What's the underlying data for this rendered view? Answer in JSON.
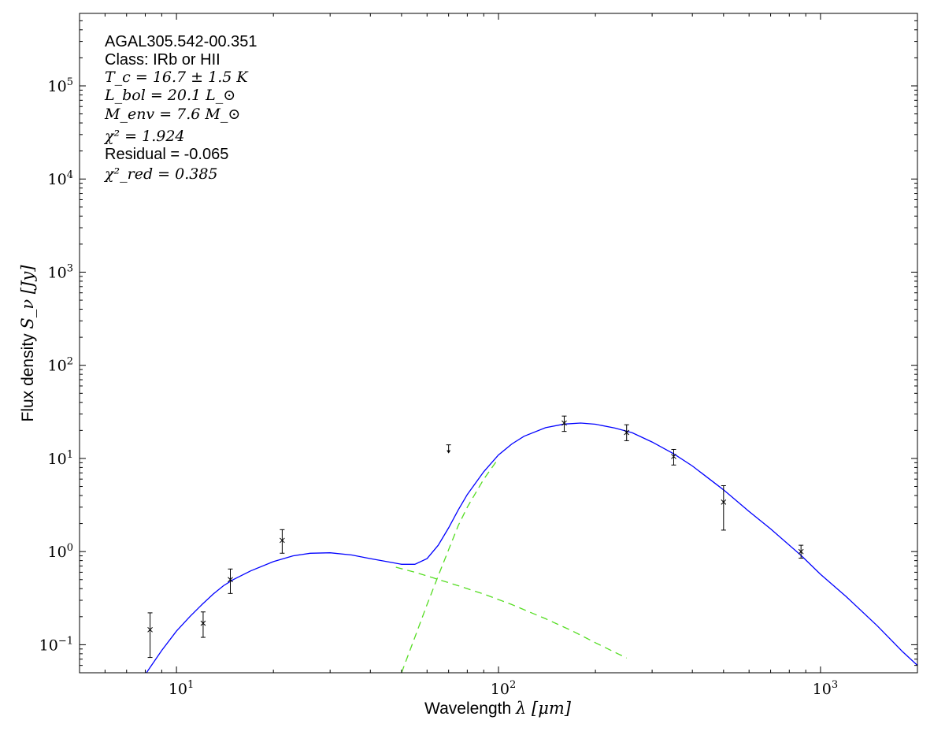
{
  "chart_data": {
    "type": "scatter",
    "xlabel_text": "Wavelength",
    "xlabel_symbol": "λ [μm]",
    "ylabel_text": "Flux density",
    "ylabel_symbol": "S_ν [Jy]",
    "xscale": "log",
    "yscale": "log",
    "xlim": [
      5,
      2000
    ],
    "ylim": [
      0.05,
      600000
    ],
    "x_ticks": [
      10,
      100,
      1000
    ],
    "x_tick_labels": [
      "10^1",
      "10^2",
      "10^3"
    ],
    "y_ticks": [
      0.1,
      1,
      10,
      100,
      1000,
      10000,
      100000
    ],
    "y_tick_labels": [
      "10^-1",
      "10^0",
      "10^1",
      "10^2",
      "10^3",
      "10^4",
      "10^5"
    ],
    "grid": false,
    "annotations": {
      "source": "AGAL305.542-00.351",
      "class": "Class: IRb or HII",
      "tc": "T_c = 16.7 ± 1.5 K",
      "lbol": "L_bol = 20.1 L_⊙",
      "menv": "M_env = 7.6 M_⊙",
      "chi2": "χ² = 1.924",
      "residual": "Residual = -0.065",
      "chi2red": "χ²_red = 0.385"
    },
    "measurements": [
      {
        "x": 8.28,
        "y": 0.145,
        "ylo": 0.073,
        "yhi": 0.22
      },
      {
        "x": 12.1,
        "y": 0.17,
        "ylo": 0.12,
        "yhi": 0.225
      },
      {
        "x": 14.7,
        "y": 0.5,
        "ylo": 0.355,
        "yhi": 0.65
      },
      {
        "x": 21.3,
        "y": 1.32,
        "ylo": 0.96,
        "yhi": 1.72
      },
      {
        "x": 160,
        "y": 24,
        "ylo": 19.5,
        "yhi": 28.5
      },
      {
        "x": 250,
        "y": 19,
        "ylo": 15.5,
        "yhi": 23
      },
      {
        "x": 350,
        "y": 10.5,
        "ylo": 8.5,
        "yhi": 12.5
      },
      {
        "x": 500,
        "y": 3.4,
        "ylo": 1.7,
        "yhi": 5.1
      },
      {
        "x": 870,
        "y": 1.0,
        "ylo": 0.85,
        "yhi": 1.17
      }
    ],
    "upper_limits": [
      {
        "x": 70,
        "y": 14
      }
    ],
    "series": [
      {
        "role": "total-fit",
        "color": "#0000ff",
        "style": "solid",
        "x": [
          8.0,
          9.0,
          10,
          11,
          12,
          13,
          14,
          15,
          17,
          20,
          23,
          26,
          30,
          35,
          40,
          45,
          50,
          55,
          60,
          65,
          70,
          75,
          80,
          90,
          100,
          110,
          120,
          140,
          160,
          180,
          200,
          230,
          260,
          300,
          350,
          400,
          500,
          600,
          700,
          870,
          1000,
          1200,
          1500,
          1800,
          2000
        ],
        "y": [
          0.048,
          0.087,
          0.14,
          0.2,
          0.27,
          0.35,
          0.43,
          0.5,
          0.62,
          0.78,
          0.9,
          0.96,
          0.97,
          0.92,
          0.84,
          0.78,
          0.73,
          0.73,
          0.84,
          1.17,
          1.8,
          2.8,
          4.1,
          7.2,
          10.9,
          14.3,
          17.3,
          21.4,
          23.4,
          24.0,
          23.3,
          21.2,
          18.9,
          15.0,
          11.2,
          8.3,
          4.6,
          2.7,
          1.75,
          0.91,
          0.57,
          0.33,
          0.16,
          0.084,
          0.06
        ]
      },
      {
        "role": "warm-component",
        "color": "#55dd22",
        "style": "dashed",
        "x": [
          48,
          55,
          63,
          75,
          90,
          110,
          140,
          170,
          200,
          250
        ],
        "y": [
          0.68,
          0.6,
          0.52,
          0.43,
          0.35,
          0.27,
          0.19,
          0.14,
          0.105,
          0.072
        ]
      },
      {
        "role": "cold-component",
        "color": "#55dd22",
        "style": "dashed",
        "x": [
          50,
          55,
          60,
          65,
          70,
          75,
          80,
          90,
          100
        ],
        "y": [
          0.05,
          0.12,
          0.27,
          0.55,
          1.05,
          1.9,
          3.0,
          6.0,
          10.0
        ]
      }
    ]
  }
}
